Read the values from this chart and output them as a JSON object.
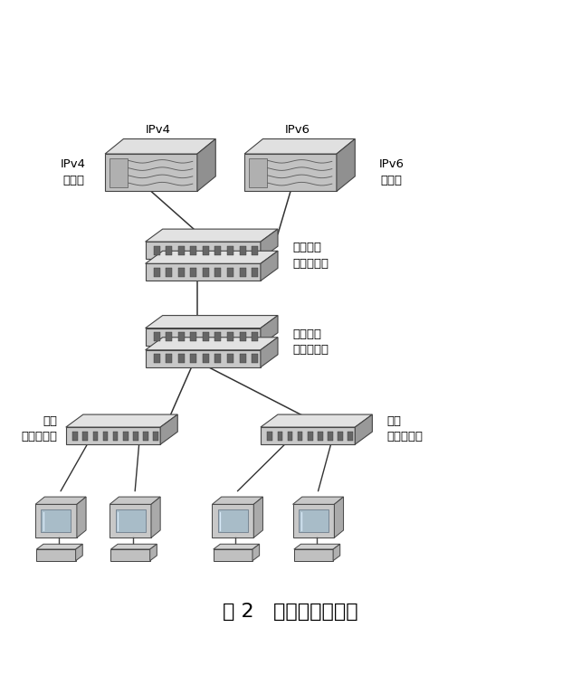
{
  "title": "图 2   实现双栈原理图",
  "title_fontsize": 16,
  "labels": {
    "ipv4_router": "IPv4\n路由器",
    "ipv6_router": "IPv6\n路由器",
    "ipv4_label": "IPv4",
    "ipv6_label": "IPv6",
    "core_switch": "核心双栈\n三层交换机",
    "aggregation_switch": "汇聚双栈\n三层交换机",
    "access_switch_left": "双栈\n二层交换机",
    "access_switch_right": "双栈\n二层交换机"
  },
  "colors": {
    "background": "#ffffff",
    "device_face": "#c8c8c8",
    "device_top": "#e2e2e2",
    "device_side": "#999999",
    "device_edge": "#444444",
    "line_color": "#333333",
    "port_color": "#666666",
    "screen_color": "#a8bcc8",
    "monitor_body": "#c8c8c8",
    "text_color": "#000000"
  }
}
